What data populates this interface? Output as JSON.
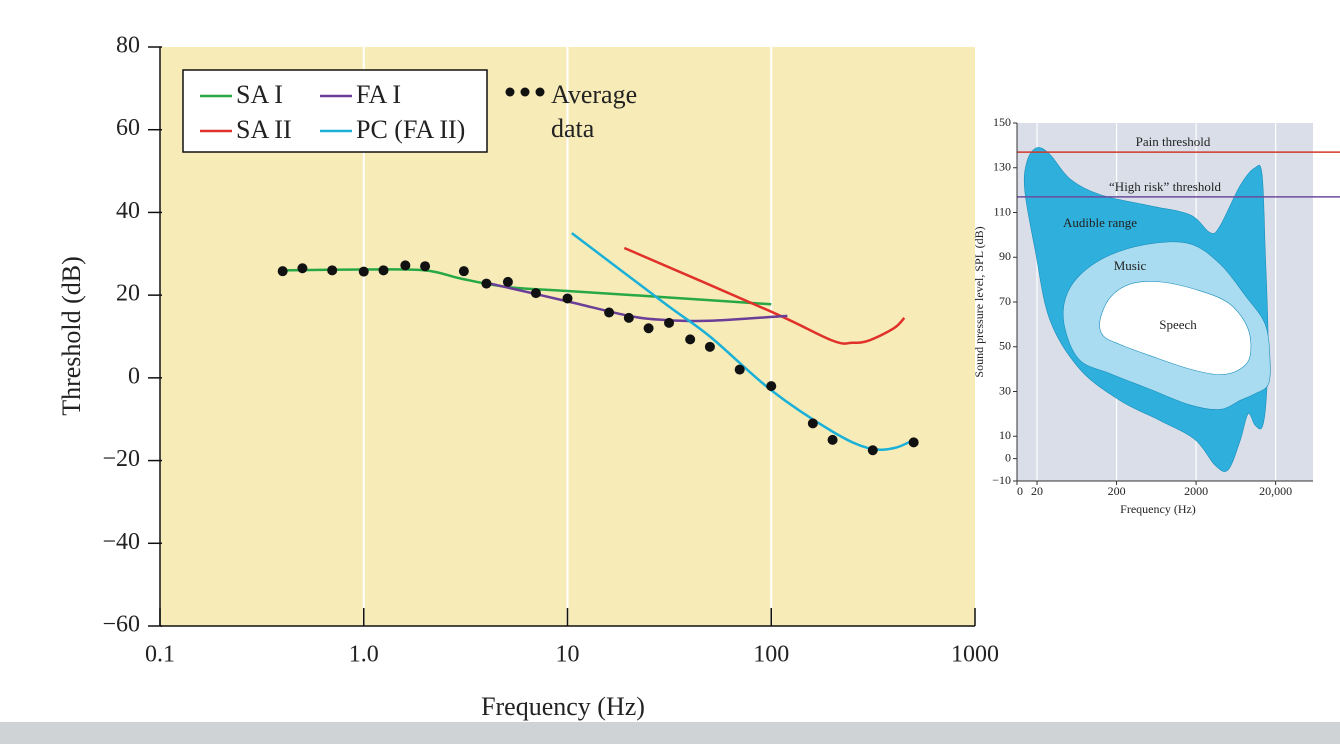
{
  "chart_data": [
    {
      "type": "line",
      "xlabel": "Frequency (Hz)",
      "ylabel": "Threshold (dB)",
      "xscale": "log",
      "xlim": [
        0.1,
        1000
      ],
      "ylim": [
        -60,
        80
      ],
      "xticks": [
        0.1,
        {
          "value": 1,
          "label": "1.0"
        },
        10,
        100,
        1000
      ],
      "yticks": [
        {
          "value": -60,
          "label": "−60"
        },
        {
          "value": -40,
          "label": "−40"
        },
        {
          "value": -20,
          "label": "−20"
        },
        0,
        20,
        40,
        60,
        80
      ],
      "grid": "x",
      "background": "#f7ebb8",
      "legend": "upper left",
      "series": [
        {
          "name": "SA I",
          "color": "#27a844",
          "mode": "lines",
          "x": [
            0.4,
            1,
            2,
            3,
            5,
            10,
            30,
            100
          ],
          "values": [
            26,
            26.2,
            26,
            24,
            22,
            21,
            19.5,
            17.8
          ]
        },
        {
          "name": "SA II",
          "color": "#e0322a",
          "mode": "lines",
          "x": [
            19,
            100,
            200,
            250,
            300,
            400,
            450
          ],
          "values": [
            31.4,
            16,
            9,
            8.5,
            9,
            12,
            14.5
          ]
        },
        {
          "name": "FA I",
          "color": "#6b3f98",
          "mode": "lines",
          "x": [
            4,
            10,
            20,
            30,
            50,
            120
          ],
          "values": [
            23,
            18.5,
            15,
            14,
            13.8,
            15
          ]
        },
        {
          "name": "PC (FA II)",
          "color": "#1ab0d8",
          "mode": "lines",
          "x": [
            10.5,
            30,
            50,
            100,
            200,
            300,
            400,
            500
          ],
          "values": [
            35,
            18,
            10,
            -3,
            -13,
            -17,
            -17,
            -15
          ]
        },
        {
          "name": "Average data",
          "color": "#111111",
          "mode": "markers",
          "x": [
            0.4,
            0.5,
            0.7,
            1.0,
            1.25,
            1.6,
            2.0,
            3.1,
            4.0,
            5.1,
            7,
            10,
            16,
            20,
            25,
            31.5,
            40,
            50,
            70,
            100,
            160,
            200,
            315,
            500
          ],
          "values": [
            25.8,
            26.5,
            26,
            25.7,
            26,
            27.2,
            27,
            25.8,
            22.8,
            23.2,
            20.5,
            19.2,
            15.8,
            14.5,
            12,
            13.3,
            9.3,
            7.5,
            2,
            -2,
            -11,
            -15,
            -17.5,
            -15.6
          ]
        }
      ]
    },
    {
      "type": "region",
      "xlabel": "Frequency (Hz)",
      "ylabel": "Sound pressure level, SPL (dB)",
      "xscale": "log",
      "xlim": [
        11.2,
        59000
      ],
      "ylim": [
        -10,
        150
      ],
      "xticks": [
        0,
        20,
        200,
        2000,
        {
          "value": 20000,
          "label": "20,000"
        }
      ],
      "yticks": [
        {
          "value": -10,
          "label": "−10"
        },
        0,
        10,
        30,
        50,
        70,
        90,
        110,
        130,
        150
      ],
      "grid": "x",
      "background": "#d9dee8",
      "regions": [
        {
          "name": "Audible range",
          "color": "#2fb0dc",
          "x": [
            15,
            20,
            29,
            52,
            124,
            527,
            1680,
            3000,
            4000,
            7150,
            11000,
            13500,
            14800,
            16100,
            15200,
            13500,
            11000,
            9000,
            7150,
            5060,
            3470,
            1940,
            705,
            221,
            69,
            29,
            19,
            14
          ],
          "y": [
            133,
            139,
            136,
            125,
            118,
            113,
            109,
            101,
            104,
            122,
            130,
            127,
            93,
            53,
            26,
            14,
            15,
            20,
            8,
            -5,
            -3,
            8.5,
            17,
            26,
            40,
            62,
            93,
            120
          ]
        },
        {
          "name": "Music",
          "color": "#a9dcf0",
          "x": [
            45,
            69,
            166,
            527,
            1680,
            4000,
            8260,
            14800,
            17000,
            16100,
            11000,
            7150,
            4000,
            1680,
            527,
            166,
            69,
            45
          ],
          "y": [
            71,
            82,
            91,
            96,
            96,
            87,
            73,
            60,
            44,
            33,
            29,
            26,
            22,
            24,
            31,
            38,
            44,
            58
          ]
        },
        {
          "name": "Speech",
          "color": "#ffffff",
          "x": [
            124,
            166,
            296,
            705,
            2240,
            5360,
            9000,
            9560,
            7150,
            4000,
            1680,
            527,
            221,
            135
          ],
          "y": [
            62,
            72,
            78,
            79,
            75,
            69,
            58,
            46,
            40,
            37.5,
            40,
            46,
            51,
            55
          ]
        }
      ],
      "lines": [
        {
          "name": "Pain threshold",
          "y": 137,
          "color": "#d0392b"
        },
        {
          "name": "“High risk” threshold",
          "y": 117,
          "color": "#6c4c9c"
        }
      ]
    }
  ]
}
